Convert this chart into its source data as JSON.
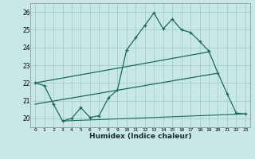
{
  "xlabel": "Humidex (Indice chaleur)",
  "xlim": [
    -0.5,
    23.5
  ],
  "ylim": [
    19.5,
    26.5
  ],
  "yticks": [
    20,
    21,
    22,
    23,
    24,
    25,
    26
  ],
  "xtick_labels": [
    "0",
    "1",
    "2",
    "3",
    "4",
    "5",
    "6",
    "7",
    "8",
    "9",
    "10",
    "11",
    "12",
    "13",
    "14",
    "15",
    "16",
    "17",
    "18",
    "19",
    "20",
    "21",
    "22",
    "23"
  ],
  "xtick_pos": [
    0,
    1,
    2,
    3,
    4,
    5,
    6,
    7,
    8,
    9,
    10,
    11,
    12,
    13,
    14,
    15,
    16,
    17,
    18,
    19,
    20,
    21,
    22,
    23
  ],
  "bg_color": "#c8e8e8",
  "grid_color": "#a0c8c8",
  "line_color": "#1a6a5a",
  "line1_x": [
    0,
    1,
    2,
    3,
    4,
    5,
    6,
    7,
    8,
    9,
    10,
    11,
    12,
    13,
    14,
    15,
    16,
    17,
    18,
    19,
    20,
    21,
    22,
    23
  ],
  "line1_y": [
    22.0,
    21.85,
    20.8,
    19.85,
    20.0,
    20.6,
    20.05,
    20.15,
    21.15,
    21.6,
    23.85,
    24.55,
    25.25,
    25.95,
    25.05,
    25.6,
    25.0,
    24.85,
    24.35,
    23.8,
    22.55,
    21.4,
    20.3,
    20.25
  ],
  "line2_x": [
    0,
    19
  ],
  "line2_y": [
    22.0,
    23.75
  ],
  "line3_x": [
    0,
    20
  ],
  "line3_y": [
    20.8,
    22.55
  ],
  "line4_x": [
    3,
    23
  ],
  "line4_y": [
    19.85,
    20.25
  ]
}
